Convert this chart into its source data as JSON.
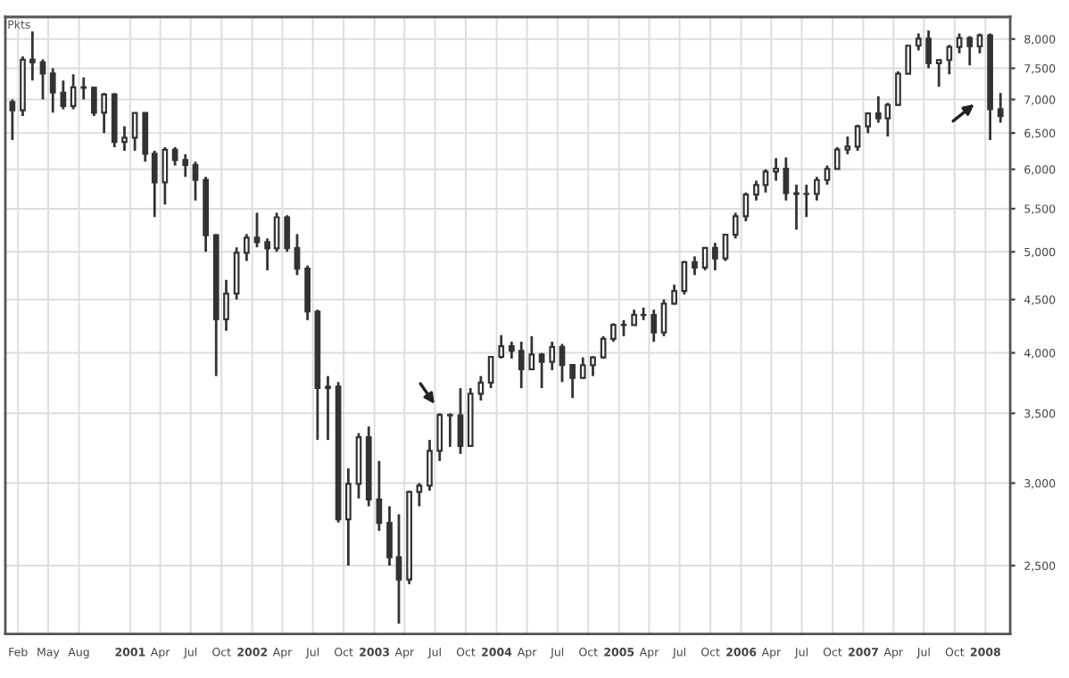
{
  "chart_data": {
    "type": "candlestick",
    "ylabel": "Pkts",
    "log": true,
    "grid": true,
    "color": "#333333",
    "x": [
      "2000-01-15",
      "2000-02-15",
      "2000-03-15",
      "2000-04-15",
      "2000-05-15",
      "2000-06-15",
      "2000-07-15",
      "2000-08-15",
      "2000-09-15",
      "2000-10-15",
      "2000-11-15",
      "2000-12-15",
      "2001-01-15",
      "2001-02-15",
      "2001-03-15",
      "2001-04-15",
      "2001-05-15",
      "2001-06-15",
      "2001-07-15",
      "2001-08-15",
      "2001-09-15",
      "2001-10-15",
      "2001-11-15",
      "2001-12-15",
      "2002-01-15",
      "2002-02-15",
      "2002-03-15",
      "2002-04-15",
      "2002-05-15",
      "2002-06-15",
      "2002-07-15",
      "2002-08-15",
      "2002-09-15",
      "2002-10-15",
      "2002-11-15",
      "2002-12-15",
      "2003-01-15",
      "2003-02-15",
      "2003-03-15",
      "2003-04-15",
      "2003-05-15",
      "2003-06-15",
      "2003-07-15",
      "2003-08-15",
      "2003-09-15",
      "2003-10-15",
      "2003-11-15",
      "2003-12-15",
      "2004-01-15",
      "2004-02-15",
      "2004-03-15",
      "2004-04-15",
      "2004-05-15",
      "2004-06-15",
      "2004-07-15",
      "2004-08-15",
      "2004-09-15",
      "2004-10-15",
      "2004-11-15",
      "2004-12-15",
      "2005-01-15",
      "2005-02-15",
      "2005-03-15",
      "2005-04-15",
      "2005-05-15",
      "2005-06-15",
      "2005-07-15",
      "2005-08-15",
      "2005-09-15",
      "2005-10-15",
      "2005-11-15",
      "2005-12-15",
      "2006-01-15",
      "2006-02-15",
      "2006-03-15",
      "2006-04-15",
      "2006-05-15",
      "2006-06-15",
      "2006-07-15",
      "2006-08-15",
      "2006-09-15",
      "2006-10-15",
      "2006-11-15",
      "2006-12-15",
      "2007-01-15",
      "2007-02-15",
      "2007-03-15",
      "2007-04-15",
      "2007-05-15",
      "2007-06-15",
      "2007-07-15",
      "2007-08-15",
      "2007-09-15",
      "2007-10-15",
      "2007-11-15",
      "2007-12-15",
      "2008-01-15",
      "2008-02-15"
    ],
    "ohlc": [
      [
        6960,
        7000,
        6400,
        6835
      ],
      [
        6835,
        7700,
        6750,
        7644
      ],
      [
        7644,
        8136,
        7300,
        7599
      ],
      [
        7599,
        7650,
        7000,
        7415
      ],
      [
        7415,
        7500,
        6800,
        7108
      ],
      [
        7108,
        7300,
        6850,
        6898
      ],
      [
        6898,
        7400,
        6850,
        7190
      ],
      [
        7190,
        7350,
        7000,
        7185
      ],
      [
        7185,
        7200,
        6750,
        6798
      ],
      [
        6798,
        7100,
        6500,
        7077
      ],
      [
        7077,
        7100,
        6300,
        6372
      ],
      [
        6372,
        6600,
        6250,
        6434
      ],
      [
        6434,
        6800,
        6250,
        6795
      ],
      [
        6795,
        6800,
        6100,
        6208
      ],
      [
        6208,
        6250,
        5400,
        5830
      ],
      [
        5830,
        6300,
        5550,
        6265
      ],
      [
        6265,
        6300,
        6050,
        6123
      ],
      [
        6123,
        6200,
        5900,
        6058
      ],
      [
        6058,
        6100,
        5600,
        5862
      ],
      [
        5862,
        5900,
        5000,
        5188
      ],
      [
        5188,
        5200,
        3800,
        4308
      ],
      [
        4308,
        4700,
        4200,
        4560
      ],
      [
        4560,
        5050,
        4500,
        4990
      ],
      [
        4990,
        5200,
        4900,
        5160
      ],
      [
        5160,
        5450,
        5050,
        5108
      ],
      [
        5108,
        5150,
        4800,
        5039
      ],
      [
        5039,
        5450,
        5000,
        5397
      ],
      [
        5397,
        5420,
        5000,
        5041
      ],
      [
        5041,
        5200,
        4750,
        4818
      ],
      [
        4818,
        4850,
        4300,
        4382
      ],
      [
        4382,
        4400,
        3300,
        3701
      ],
      [
        3701,
        3800,
        3300,
        3712
      ],
      [
        3712,
        3750,
        2750,
        2769
      ],
      [
        2769,
        3100,
        2500,
        2995
      ],
      [
        2995,
        3350,
        2900,
        3320
      ],
      [
        3320,
        3400,
        2850,
        2893
      ],
      [
        2893,
        3150,
        2700,
        2748
      ],
      [
        2748,
        2850,
        2500,
        2547
      ],
      [
        2547,
        2800,
        2200,
        2424
      ],
      [
        2424,
        2950,
        2400,
        2942
      ],
      [
        2942,
        3000,
        2850,
        2983
      ],
      [
        2983,
        3300,
        2950,
        3221
      ],
      [
        3221,
        3500,
        3150,
        3487
      ],
      [
        3487,
        3500,
        3250,
        3484
      ],
      [
        3484,
        3700,
        3200,
        3257
      ],
      [
        3257,
        3700,
        3250,
        3655
      ],
      [
        3655,
        3800,
        3600,
        3745
      ],
      [
        3745,
        3970,
        3700,
        3965
      ],
      [
        3965,
        4160,
        3950,
        4059
      ],
      [
        4059,
        4100,
        3950,
        4018
      ],
      [
        4018,
        4100,
        3700,
        3857
      ],
      [
        3857,
        4150,
        3850,
        3985
      ],
      [
        3985,
        4000,
        3700,
        3921
      ],
      [
        3921,
        4100,
        3850,
        4053
      ],
      [
        4053,
        4080,
        3750,
        3895
      ],
      [
        3895,
        3900,
        3620,
        3785
      ],
      [
        3785,
        3960,
        3780,
        3893
      ],
      [
        3893,
        3970,
        3800,
        3960
      ],
      [
        3960,
        4150,
        3950,
        4126
      ],
      [
        4126,
        4270,
        4100,
        4256
      ],
      [
        4256,
        4300,
        4150,
        4254
      ],
      [
        4254,
        4400,
        4250,
        4350
      ],
      [
        4350,
        4420,
        4300,
        4349
      ],
      [
        4349,
        4400,
        4100,
        4185
      ],
      [
        4185,
        4500,
        4150,
        4460
      ],
      [
        4460,
        4650,
        4450,
        4587
      ],
      [
        4587,
        4900,
        4550,
        4887
      ],
      [
        4887,
        4950,
        4750,
        4830
      ],
      [
        4830,
        5050,
        4800,
        5044
      ],
      [
        5044,
        5100,
        4800,
        4929
      ],
      [
        4929,
        5200,
        4900,
        5193
      ],
      [
        5193,
        5450,
        5150,
        5408
      ],
      [
        5408,
        5700,
        5350,
        5674
      ],
      [
        5674,
        5850,
        5600,
        5796
      ],
      [
        5796,
        6000,
        5700,
        5970
      ],
      [
        5970,
        6150,
        5850,
        6009
      ],
      [
        6009,
        6160,
        5600,
        5692
      ],
      [
        5692,
        5800,
        5250,
        5683
      ],
      [
        5683,
        5800,
        5400,
        5682
      ],
      [
        5682,
        5900,
        5600,
        5860
      ],
      [
        5860,
        6050,
        5800,
        6004
      ],
      [
        6004,
        6300,
        6000,
        6268
      ],
      [
        6268,
        6450,
        6200,
        6309
      ],
      [
        6309,
        6620,
        6250,
        6597
      ],
      [
        6597,
        6800,
        6500,
        6789
      ],
      [
        6789,
        7050,
        6650,
        6716
      ],
      [
        6716,
        6950,
        6450,
        6917
      ],
      [
        6917,
        7450,
        6900,
        7409
      ],
      [
        7409,
        7900,
        7400,
        7883
      ],
      [
        7883,
        8100,
        7800,
        8007
      ],
      [
        8007,
        8150,
        7500,
        7584
      ],
      [
        7584,
        7650,
        7200,
        7638
      ],
      [
        7638,
        7900,
        7400,
        7862
      ],
      [
        7862,
        8100,
        7750,
        8019
      ],
      [
        8019,
        8050,
        7550,
        7871
      ],
      [
        7871,
        8100,
        7750,
        8067
      ],
      [
        8067,
        8100,
        6400,
        6851
      ],
      [
        6851,
        7100,
        6650,
        6748
      ]
    ],
    "xlim": [
      "1999-12-25",
      "2008-03-15"
    ],
    "ylim": [
      2150,
      8400
    ],
    "yticks": [
      {
        "value": 2500,
        "label": "2,500"
      },
      {
        "value": 3000,
        "label": "3,000"
      },
      {
        "value": 3500,
        "label": "3,500"
      },
      {
        "value": 4000,
        "label": "4,000"
      },
      {
        "value": 4500,
        "label": "4,500"
      },
      {
        "value": 5000,
        "label": "5,000"
      },
      {
        "value": 5500,
        "label": "5,500"
      },
      {
        "value": 6000,
        "label": "6,000"
      },
      {
        "value": 6500,
        "label": "6,500"
      },
      {
        "value": 7000,
        "label": "7,000"
      },
      {
        "value": 7500,
        "label": "7,500"
      },
      {
        "value": 8000,
        "label": "8,000"
      }
    ],
    "xticks": [
      {
        "value": "2000-02-01",
        "label": "Feb"
      },
      {
        "value": "2000-05-01",
        "label": "May"
      },
      {
        "value": "2000-08-01",
        "label": "Aug"
      },
      {
        "value": "2001-01-01",
        "label": "2001"
      },
      {
        "value": "2001-04-01",
        "label": "Apr"
      },
      {
        "value": "2001-07-01",
        "label": "Jul"
      },
      {
        "value": "2001-10-01",
        "label": "Oct"
      },
      {
        "value": "2002-01-01",
        "label": "2002"
      },
      {
        "value": "2002-04-01",
        "label": "Apr"
      },
      {
        "value": "2002-07-01",
        "label": "Jul"
      },
      {
        "value": "2002-10-01",
        "label": "Oct"
      },
      {
        "value": "2003-01-01",
        "label": "2003"
      },
      {
        "value": "2003-04-01",
        "label": "Apr"
      },
      {
        "value": "2003-07-01",
        "label": "Jul"
      },
      {
        "value": "2003-10-01",
        "label": "Oct"
      },
      {
        "value": "2004-01-01",
        "label": "2004"
      },
      {
        "value": "2004-04-01",
        "label": "Apr"
      },
      {
        "value": "2004-07-01",
        "label": "Jul"
      },
      {
        "value": "2004-10-01",
        "label": "Oct"
      },
      {
        "value": "2005-01-01",
        "label": "2005"
      },
      {
        "value": "2005-04-01",
        "label": "Apr"
      },
      {
        "value": "2005-07-01",
        "label": "Jul"
      },
      {
        "value": "2005-10-01",
        "label": "Oct"
      },
      {
        "value": "2006-01-01",
        "label": "2006"
      },
      {
        "value": "2006-04-01",
        "label": "Apr"
      },
      {
        "value": "2006-07-01",
        "label": "Jul"
      },
      {
        "value": "2006-10-01",
        "label": "Oct"
      },
      {
        "value": "2007-01-01",
        "label": "2007"
      },
      {
        "value": "2007-04-01",
        "label": "Apr"
      },
      {
        "value": "2007-07-01",
        "label": "Jul"
      },
      {
        "value": "2007-10-01",
        "label": "Oct"
      },
      {
        "value": "2008-01-01",
        "label": "2008"
      }
    ]
  }
}
